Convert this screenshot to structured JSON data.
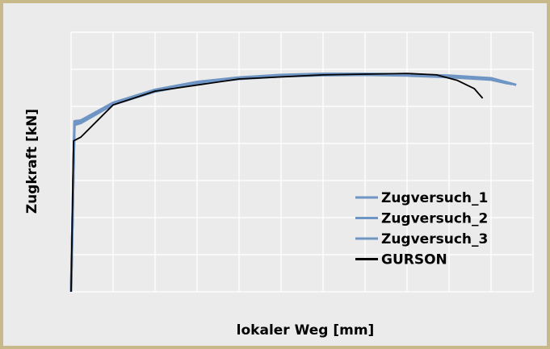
{
  "chart_data": {
    "type": "line",
    "xlabel": "lokaler Weg [mm]",
    "ylabel": "Zugkraft [kN]",
    "xlim": [
      0,
      11
    ],
    "ylim": [
      0,
      7
    ],
    "xticks": [
      0,
      1,
      2,
      3,
      4,
      5,
      6,
      7,
      8,
      9,
      10,
      11
    ],
    "yticks": [
      0,
      1,
      2,
      3,
      4,
      5,
      6,
      7
    ],
    "grid": true,
    "legend": "lower right",
    "series": [
      {
        "name": "Zugversuch_1",
        "color": "#6f95c4",
        "x": [
          0,
          0.08,
          0.23,
          1,
          2,
          3,
          4,
          5,
          6,
          7,
          8,
          9,
          10,
          10.6
        ],
        "values": [
          0,
          4.6,
          4.62,
          5.1,
          5.45,
          5.66,
          5.78,
          5.85,
          5.88,
          5.88,
          5.86,
          5.83,
          5.76,
          5.58
        ]
      },
      {
        "name": "Zugversuch_2",
        "color": "#6f95c4",
        "x": [
          0,
          0.08,
          0.23,
          1,
          2,
          3,
          4,
          5,
          6,
          7,
          8,
          9,
          10,
          10.4
        ],
        "values": [
          0,
          4.5,
          4.55,
          5.05,
          5.4,
          5.62,
          5.74,
          5.81,
          5.84,
          5.85,
          5.83,
          5.79,
          5.72,
          5.62
        ]
      },
      {
        "name": "Zugversuch_3",
        "color": "#6f95c4",
        "x": [
          0,
          0.08,
          0.23,
          1,
          2,
          3,
          4,
          5,
          6,
          7,
          8,
          9,
          10,
          10.5
        ],
        "values": [
          0,
          4.55,
          4.58,
          5.08,
          5.42,
          5.64,
          5.76,
          5.83,
          5.86,
          5.86,
          5.85,
          5.81,
          5.74,
          5.6
        ]
      },
      {
        "name": "GURSON",
        "color": "#000000",
        "x": [
          0,
          0.06,
          0.23,
          1,
          2,
          4,
          6,
          8,
          8.7,
          9.2,
          9.6,
          9.8
        ],
        "values": [
          0,
          4.07,
          4.17,
          5.04,
          5.41,
          5.74,
          5.85,
          5.89,
          5.85,
          5.7,
          5.48,
          5.22
        ]
      }
    ]
  }
}
